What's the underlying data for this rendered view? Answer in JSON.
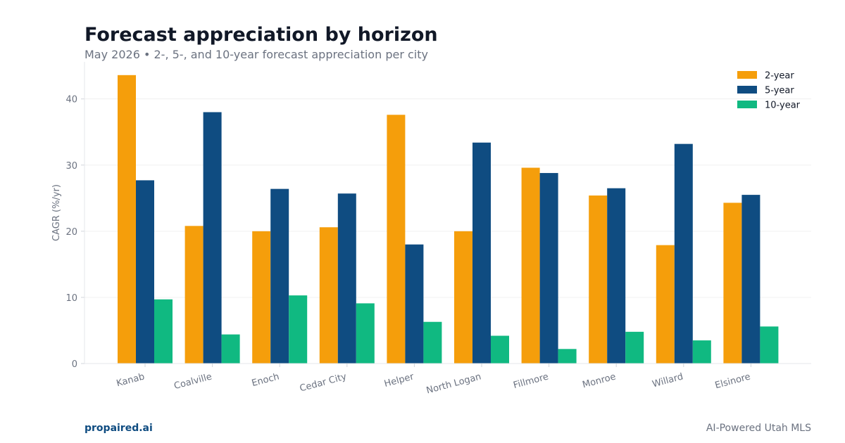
{
  "header": {
    "title": "Forecast appreciation by horizon",
    "subtitle": "May 2026 • 2-, 5-, and 10-year forecast appreciation per city"
  },
  "footer": {
    "brand": "propaired.ai",
    "tagline": "AI-Powered Utah MLS"
  },
  "chart_data": {
    "type": "bar",
    "title": "Forecast appreciation by horizon",
    "subtitle": "May 2026 • 2-, 5-, and 10-year forecast appreciation per city",
    "xlabel": "",
    "ylabel": "CAGR (%/yr)",
    "ylim": [
      0,
      45.6
    ],
    "yticks": [
      0,
      10,
      20,
      30,
      40
    ],
    "grid": true,
    "legend": "top-right",
    "categories": [
      "Kanab",
      "Coalville",
      "Enoch",
      "Cedar City",
      "Helper",
      "North Logan",
      "Fillmore",
      "Monroe",
      "Willard",
      "Elsinore"
    ],
    "series": [
      {
        "name": "2-year",
        "color": "#f59e0b",
        "values": [
          43.6,
          20.8,
          20.0,
          20.6,
          37.6,
          20.0,
          29.6,
          25.4,
          17.9,
          24.3
        ]
      },
      {
        "name": "5-year",
        "color": "#0f4c81",
        "values": [
          27.7,
          38.0,
          26.4,
          25.7,
          18.0,
          33.4,
          28.8,
          26.5,
          33.2,
          25.5
        ]
      },
      {
        "name": "10-year",
        "color": "#10b981",
        "values": [
          9.7,
          4.4,
          10.3,
          9.1,
          6.3,
          4.2,
          2.2,
          4.8,
          3.5,
          5.6
        ]
      }
    ]
  }
}
